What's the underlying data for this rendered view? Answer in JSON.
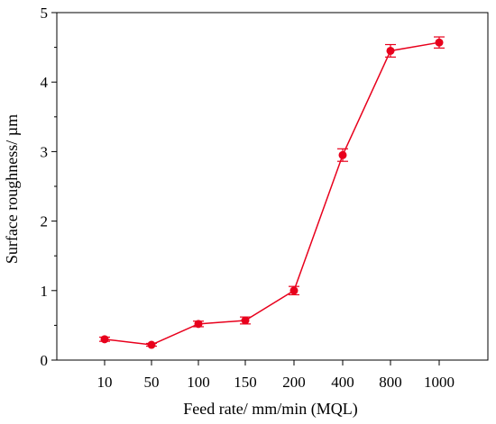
{
  "chart_data": {
    "type": "line",
    "categories": [
      "10",
      "50",
      "100",
      "150",
      "200",
      "400",
      "800",
      "1000"
    ],
    "series": [
      {
        "values": [
          0.3,
          0.22,
          0.52,
          0.57,
          1.0,
          2.95,
          4.45,
          4.57
        ],
        "errors": [
          0.03,
          0.02,
          0.04,
          0.05,
          0.06,
          0.09,
          0.09,
          0.08
        ],
        "color": "#e8001c"
      }
    ],
    "xlabel": "Feed rate/ mm/min (MQL)",
    "ylabel": "Surface roughness/ µm",
    "ylim": [
      0,
      5
    ],
    "yticks": [
      "0",
      "1",
      "2",
      "3",
      "4",
      "5"
    ],
    "grid": false,
    "legend": "none"
  }
}
